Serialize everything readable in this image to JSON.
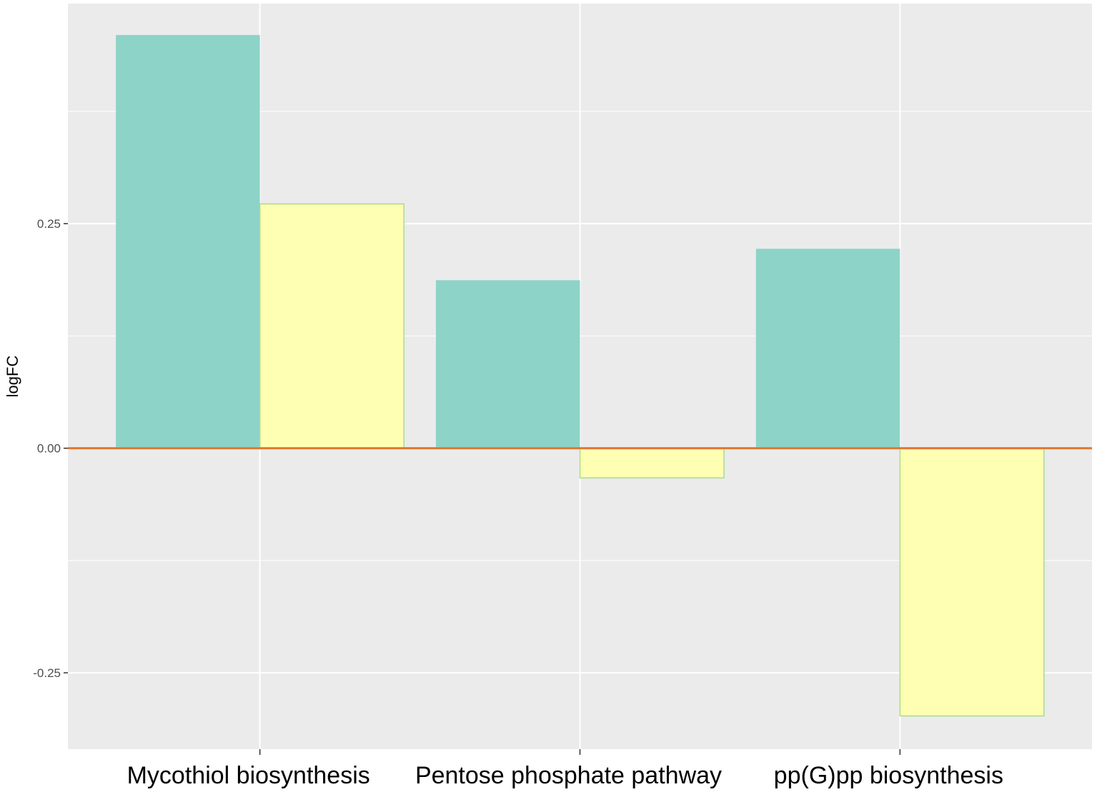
{
  "chart_data": {
    "type": "bar",
    "title": "",
    "xlabel": "",
    "ylabel": "logFC",
    "ylim": [
      -0.335,
      0.495
    ],
    "yticks": [
      -0.25,
      0.0,
      0.25
    ],
    "ytick_labels": [
      "-0.25",
      "0.00",
      "0.25"
    ],
    "grid": true,
    "legend": "none",
    "categories": [
      "Mycothiol biosynthesis",
      "Pentose phosphate pathway",
      "pp(G)pp biosynthesis"
    ],
    "series": [
      {
        "values": [
          0.46,
          0.187,
          0.222
        ],
        "color": "#8dd3c7"
      },
      {
        "values": [
          0.272,
          -0.033,
          -0.298
        ],
        "color": "#ffffb3",
        "outline": "#a6dc8f"
      }
    ],
    "reference_line": {
      "y": 0.0,
      "color": "#e3782e"
    },
    "panel_background": "#ebebeb",
    "grid_color": "#ffffff"
  }
}
